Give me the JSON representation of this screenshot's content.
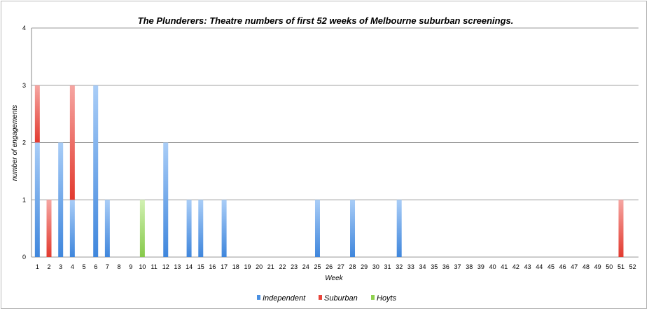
{
  "chart_data": {
    "type": "bar",
    "stacked": true,
    "title": "The Plunderers: Theatre numbers of first 52 weeks of Melbourne suburban screenings.",
    "xlabel": "Week",
    "ylabel": "number of engagements",
    "ylim": [
      0,
      4
    ],
    "yticks": [
      "0",
      "1",
      "2",
      "3",
      "4"
    ],
    "categories": [
      "1",
      "2",
      "3",
      "4",
      "5",
      "6",
      "7",
      "8",
      "9",
      "10",
      "11",
      "12",
      "13",
      "14",
      "15",
      "16",
      "17",
      "18",
      "19",
      "20",
      "21",
      "22",
      "23",
      "24",
      "25",
      "26",
      "27",
      "28",
      "29",
      "30",
      "31",
      "32",
      "33",
      "34",
      "35",
      "36",
      "37",
      "38",
      "39",
      "40",
      "41",
      "42",
      "43",
      "44",
      "45",
      "46",
      "47",
      "48",
      "49",
      "50",
      "51",
      "52"
    ],
    "series": [
      {
        "name": "Independent",
        "color": "#4a90e2",
        "values": [
          2,
          0,
          2,
          1,
          0,
          3,
          1,
          0,
          0,
          0,
          0,
          2,
          0,
          1,
          1,
          0,
          1,
          0,
          0,
          0,
          0,
          0,
          0,
          0,
          1,
          0,
          0,
          1,
          0,
          0,
          0,
          1,
          0,
          0,
          0,
          0,
          0,
          0,
          0,
          0,
          0,
          0,
          0,
          0,
          0,
          0,
          0,
          0,
          0,
          0,
          0,
          0
        ]
      },
      {
        "name": "Suburban",
        "color": "#e8443a",
        "values": [
          1,
          1,
          0,
          2,
          0,
          0,
          0,
          0,
          0,
          0,
          0,
          0,
          0,
          0,
          0,
          0,
          0,
          0,
          0,
          0,
          0,
          0,
          0,
          0,
          0,
          0,
          0,
          0,
          0,
          0,
          0,
          0,
          0,
          0,
          0,
          0,
          0,
          0,
          0,
          0,
          0,
          0,
          0,
          0,
          0,
          0,
          0,
          0,
          0,
          0,
          1,
          0
        ]
      },
      {
        "name": "Hoyts",
        "color": "#8fd14f",
        "values": [
          0,
          0,
          0,
          0,
          0,
          0,
          0,
          0,
          0,
          1,
          0,
          0,
          0,
          0,
          0,
          0,
          0,
          0,
          0,
          0,
          0,
          0,
          0,
          0,
          0,
          0,
          0,
          0,
          0,
          0,
          0,
          0,
          0,
          0,
          0,
          0,
          0,
          0,
          0,
          0,
          0,
          0,
          0,
          0,
          0,
          0,
          0,
          0,
          0,
          0,
          0,
          0
        ]
      }
    ],
    "grid": true,
    "legend": "bottom"
  }
}
